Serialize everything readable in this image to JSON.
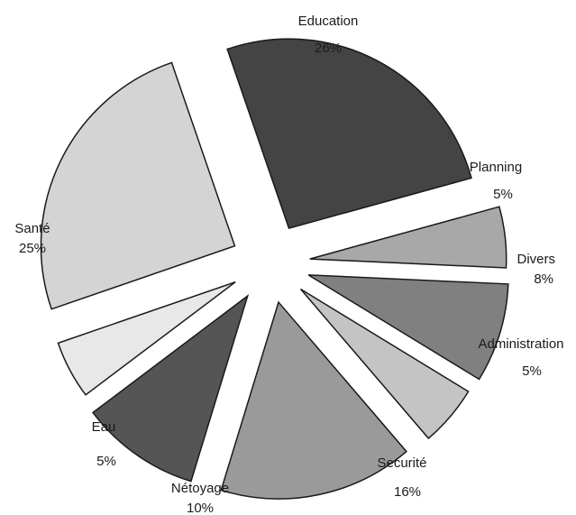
{
  "chart_data": {
    "type": "pie",
    "title": "",
    "slices": [
      {
        "label": "Education",
        "value": 26,
        "value_label": "26%",
        "color": "#444444"
      },
      {
        "label": "Planning",
        "value": 5,
        "value_label": "5%",
        "color": "#a8a8a8"
      },
      {
        "label": "Divers",
        "value": 8,
        "value_label": "8%",
        "color": "#808080"
      },
      {
        "label": "Administration",
        "value": 5,
        "value_label": "5%",
        "color": "#c4c4c4"
      },
      {
        "label": "Securité",
        "value": 16,
        "value_label": "16%",
        "color": "#9a9a9a"
      },
      {
        "label": "Nétoyage",
        "value": 10,
        "value_label": "10%",
        "color": "#555555"
      },
      {
        "label": "Eau",
        "value": 5,
        "value_label": "5%",
        "color": "#e8e8e8"
      },
      {
        "label": "Santé",
        "value": 25,
        "value_label": "25%",
        "color": "#d4d4d4"
      }
    ],
    "exploded": true,
    "legend": "none"
  }
}
